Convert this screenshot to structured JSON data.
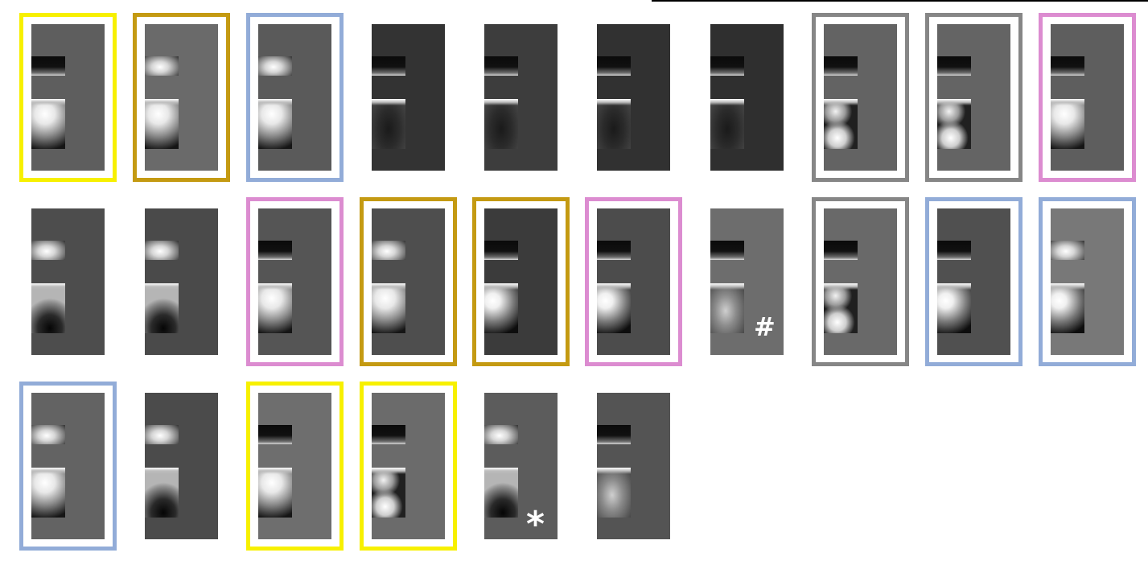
{
  "colors": {
    "yellow": "#f7f000",
    "gold": "#c49a12",
    "blue": "#92acd8",
    "gray": "#868686",
    "pink": "#dc8cd0"
  },
  "tiles": [
    {
      "row": 0,
      "col": 0,
      "bg": "#5e5e5e",
      "frame": "yellow",
      "band": "dark",
      "blob": "bright-top"
    },
    {
      "row": 0,
      "col": 1,
      "bg": "#6a6a6a",
      "frame": "gold",
      "band": "bright",
      "blob": "bright-top"
    },
    {
      "row": 0,
      "col": 2,
      "bg": "#5a5a5a",
      "frame": "blue",
      "band": "bright",
      "blob": "bright-top"
    },
    {
      "row": 0,
      "col": 3,
      "bg": "#333333",
      "frame": null,
      "band": "dark",
      "blob": "dim"
    },
    {
      "row": 0,
      "col": 4,
      "bg": "#3d3d3d",
      "frame": null,
      "band": "dark",
      "blob": "dim"
    },
    {
      "row": 0,
      "col": 5,
      "bg": "#313131",
      "frame": null,
      "band": "dark",
      "blob": "dim"
    },
    {
      "row": 0,
      "col": 6,
      "bg": "#2f2f2f",
      "frame": null,
      "band": "dark",
      "blob": "dim"
    },
    {
      "row": 0,
      "col": 7,
      "bg": "#636363",
      "frame": "gray",
      "band": "dark",
      "blob": "two-spots"
    },
    {
      "row": 0,
      "col": 8,
      "bg": "#646464",
      "frame": "gray",
      "band": "dark",
      "blob": "two-spots"
    },
    {
      "row": 0,
      "col": 9,
      "bg": "#5e5e5e",
      "frame": "pink",
      "band": "dark",
      "blob": "bright-top"
    },
    {
      "row": 1,
      "col": 0,
      "bg": "#4d4d4d",
      "frame": null,
      "band": "bright",
      "blob": "dark-bottom"
    },
    {
      "row": 1,
      "col": 1,
      "bg": "#4a4a4a",
      "frame": null,
      "band": "bright",
      "blob": "dark-bottom"
    },
    {
      "row": 1,
      "col": 2,
      "bg": "#555555",
      "frame": "pink",
      "band": "dark",
      "blob": "bright-top"
    },
    {
      "row": 1,
      "col": 3,
      "bg": "#4e4e4e",
      "frame": "gold",
      "band": "bright",
      "blob": "bright-top"
    },
    {
      "row": 1,
      "col": 4,
      "bg": "#3b3b3b",
      "frame": "gold",
      "band": "dark",
      "blob": "bright-left"
    },
    {
      "row": 1,
      "col": 5,
      "bg": "#4c4c4c",
      "frame": "pink",
      "band": "dark",
      "blob": "bright-left"
    },
    {
      "row": 1,
      "col": 6,
      "bg": "#6d6d6d",
      "frame": null,
      "band": "dark",
      "blob": "soft",
      "mark": "hash"
    },
    {
      "row": 1,
      "col": 7,
      "bg": "#696969",
      "frame": "gray",
      "band": "dark",
      "blob": "two-spots"
    },
    {
      "row": 1,
      "col": 8,
      "bg": "#505050",
      "frame": "blue",
      "band": "dark",
      "blob": "bright-left"
    },
    {
      "row": 1,
      "col": 9,
      "bg": "#787878",
      "frame": "blue",
      "band": "bright",
      "blob": "bright-left"
    },
    {
      "row": 2,
      "col": 0,
      "bg": "#636363",
      "frame": "blue",
      "band": "bright",
      "blob": "bright-top"
    },
    {
      "row": 2,
      "col": 1,
      "bg": "#4b4b4b",
      "frame": null,
      "band": "bright",
      "blob": "dark-bottom"
    },
    {
      "row": 2,
      "col": 2,
      "bg": "#6e6e6e",
      "frame": "yellow",
      "band": "dark",
      "blob": "bright-top"
    },
    {
      "row": 2,
      "col": 3,
      "bg": "#6b6b6b",
      "frame": "yellow",
      "band": "dark",
      "blob": "two-spots"
    },
    {
      "row": 2,
      "col": 4,
      "bg": "#5c5c5c",
      "frame": null,
      "band": "bright",
      "blob": "dark-bottom",
      "mark": "star"
    },
    {
      "row": 2,
      "col": 5,
      "bg": "#545454",
      "frame": null,
      "band": "dark",
      "blob": "soft"
    }
  ],
  "marks": {
    "hash": "#",
    "star": "*"
  }
}
